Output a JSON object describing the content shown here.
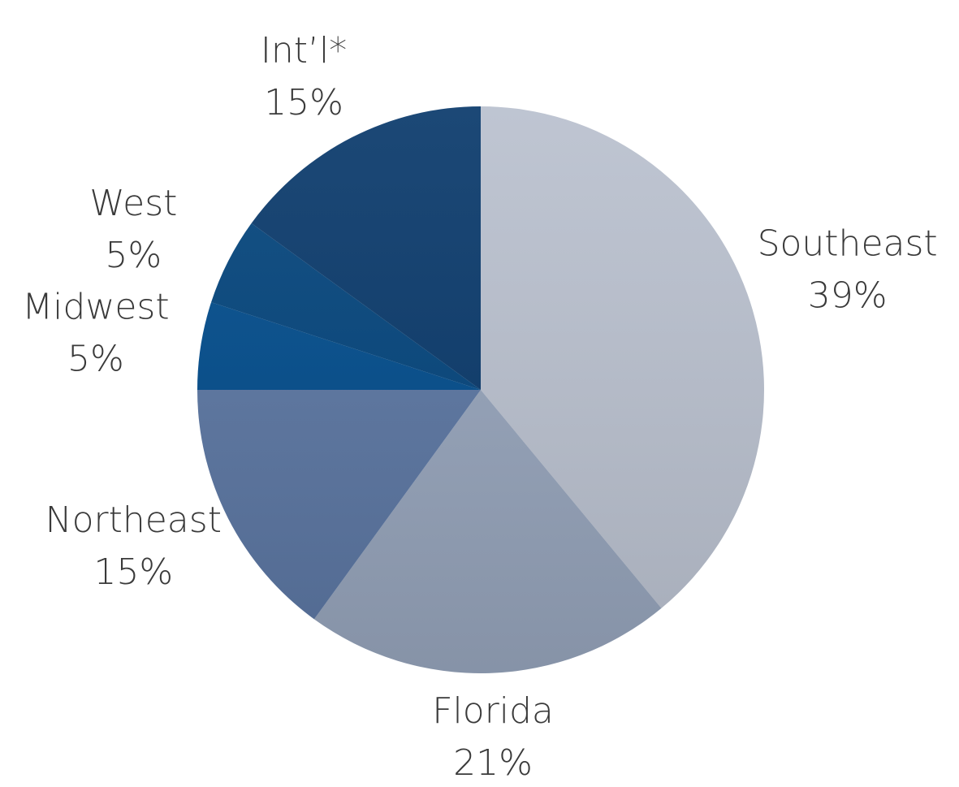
{
  "chart_data": {
    "type": "pie",
    "categories": [
      "Southeast",
      "Florida",
      "Northeast",
      "Midwest",
      "West",
      "Int’l*"
    ],
    "values": [
      39,
      21,
      15,
      5,
      5,
      15
    ],
    "value_labels": [
      "39%",
      "21%",
      "15%",
      "5%",
      "5%",
      "15%"
    ],
    "colors": [
      "#b9c0ce",
      "#95a3ba",
      "#5a75a1",
      "#004b8b",
      "#02437b",
      "#08386a"
    ]
  }
}
